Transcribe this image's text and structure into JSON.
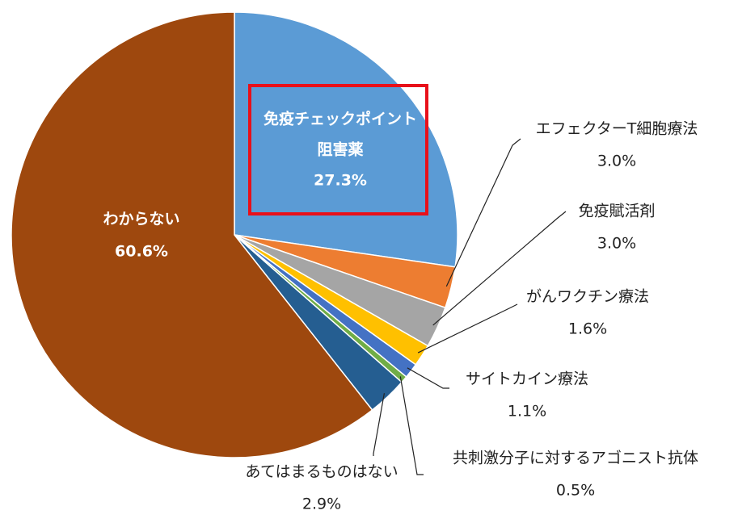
{
  "chart_data": {
    "type": "pie",
    "start": "top",
    "direction": "clockwise",
    "slices": [
      {
        "label_lines": [
          "免疫チェックポイント",
          "阻害薬"
        ],
        "value": 27.3,
        "value_text": "27.3%",
        "color": "#5B9BD5"
      },
      {
        "label_lines": [
          "エフェクターT細胞療法"
        ],
        "value": 3.0,
        "value_text": "3.0%",
        "color": "#ED7D31"
      },
      {
        "label_lines": [
          "免疫賦活剤"
        ],
        "value": 3.0,
        "value_text": "3.0%",
        "color": "#A5A5A5"
      },
      {
        "label_lines": [
          "がんワクチン療法"
        ],
        "value": 1.6,
        "value_text": "1.6%",
        "color": "#FFC000"
      },
      {
        "label_lines": [
          "サイトカイン療法"
        ],
        "value": 1.1,
        "value_text": "1.1%",
        "color": "#4472C4"
      },
      {
        "label_lines": [
          "共刺激分子に対するアゴニスト抗体"
        ],
        "value": 0.5,
        "value_text": "0.5%",
        "color": "#70AD47"
      },
      {
        "label_lines": [
          "あてはまるものはない"
        ],
        "value": 2.9,
        "value_text": "2.9%",
        "color": "#255E91"
      },
      {
        "label_lines": [
          "わからない"
        ],
        "value": 60.6,
        "value_text": "60.6%",
        "color": "#9E480E"
      }
    ],
    "highlight_color": "#E8101A"
  }
}
